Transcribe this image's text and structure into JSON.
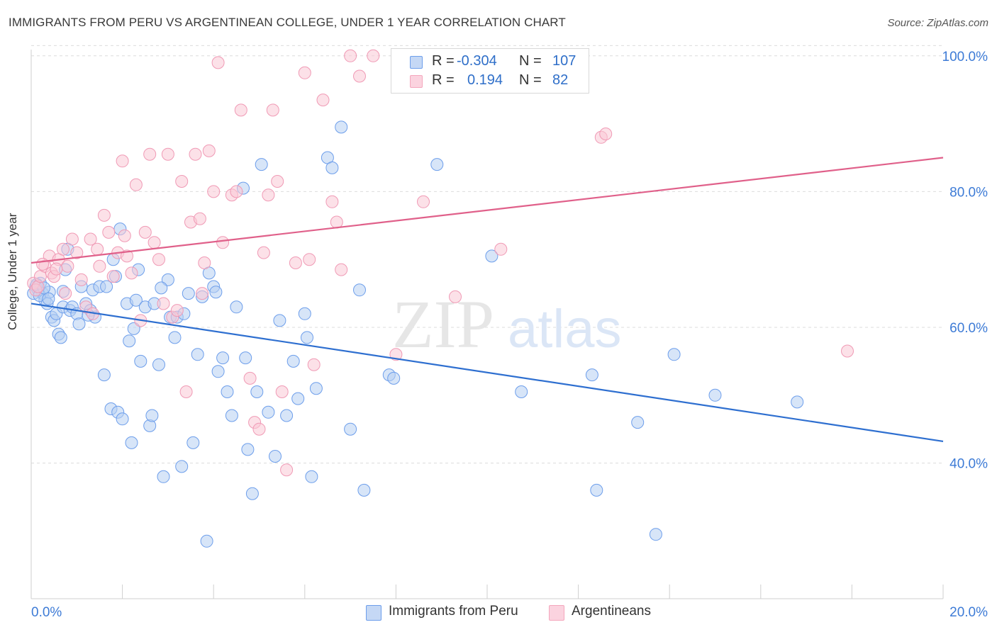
{
  "title": "IMMIGRANTS FROM PERU VS ARGENTINEAN COLLEGE, UNDER 1 YEAR CORRELATION CHART",
  "source": "Source: ZipAtlas.com",
  "watermark": {
    "zip": "ZIP",
    "atlas": "atlas"
  },
  "legend": {
    "r_label": "R =",
    "n_label": "N =",
    "rows": [
      {
        "name": "Immigrants from Peru",
        "r": "-0.304",
        "n": "107",
        "color": "#6d9eeb"
      },
      {
        "name": "Argentineans",
        "r": "0.194",
        "n": "82",
        "color": "#f4a7bd"
      }
    ]
  },
  "colors": {
    "blue_line": "#2e6fd0",
    "pink_line": "#e0608a",
    "blue_fill": "#b7cff2",
    "pink_fill": "#f9c8d6",
    "axis_text": "#3d7bd6",
    "grid": "#dcdcdc"
  },
  "chart_data": {
    "type": "scatter",
    "title": "IMMIGRANTS FROM PERU VS ARGENTINEAN COLLEGE, UNDER 1 YEAR CORRELATION CHART",
    "xlabel": "",
    "ylabel": "College, Under 1 year",
    "xlim": [
      0.0,
      20.0
    ],
    "ylim": [
      20.0,
      102.0
    ],
    "x_tick_labels": [
      "0.0%",
      "20.0%"
    ],
    "y_ticks": [
      40,
      60,
      80,
      100
    ],
    "y_tick_labels": [
      "40.0%",
      "60.0%",
      "80.0%",
      "100.0%"
    ],
    "grid": true,
    "legend_position": "bottom",
    "series": [
      {
        "name": "Immigrants from Peru",
        "r": -0.304,
        "n": 107,
        "trend": {
          "x": [
            0.0,
            20.0
          ],
          "y": [
            63.5,
            43.2
          ]
        },
        "points": [
          [
            0.1,
            66.0
          ],
          [
            0.15,
            65.5
          ],
          [
            0.2,
            66.5
          ],
          [
            0.25,
            65.0
          ],
          [
            0.3,
            64.0
          ],
          [
            0.35,
            63.5
          ],
          [
            0.4,
            65.2
          ],
          [
            0.45,
            61.5
          ],
          [
            0.5,
            61.0
          ],
          [
            0.55,
            62.0
          ],
          [
            0.6,
            59.0
          ],
          [
            0.65,
            58.5
          ],
          [
            0.7,
            63.0
          ],
          [
            0.75,
            68.5
          ],
          [
            0.8,
            71.5
          ],
          [
            0.85,
            62.5
          ],
          [
            0.9,
            63.0
          ],
          [
            1.0,
            62.0
          ],
          [
            1.05,
            60.5
          ],
          [
            1.1,
            66.0
          ],
          [
            1.2,
            63.5
          ],
          [
            1.3,
            62.5
          ],
          [
            1.35,
            65.5
          ],
          [
            1.4,
            61.5
          ],
          [
            1.5,
            66.0
          ],
          [
            1.6,
            53.0
          ],
          [
            1.65,
            66.0
          ],
          [
            1.75,
            48.0
          ],
          [
            1.8,
            70.0
          ],
          [
            1.85,
            67.5
          ],
          [
            1.9,
            47.5
          ],
          [
            1.95,
            74.5
          ],
          [
            2.0,
            46.5
          ],
          [
            2.1,
            63.5
          ],
          [
            2.15,
            58.0
          ],
          [
            2.2,
            43.0
          ],
          [
            2.3,
            64.0
          ],
          [
            2.35,
            68.5
          ],
          [
            2.4,
            55.0
          ],
          [
            2.5,
            63.0
          ],
          [
            2.6,
            45.5
          ],
          [
            2.65,
            47.0
          ],
          [
            2.7,
            63.5
          ],
          [
            2.8,
            54.5
          ],
          [
            2.9,
            38.0
          ],
          [
            3.0,
            67.0
          ],
          [
            3.05,
            61.5
          ],
          [
            3.15,
            58.5
          ],
          [
            3.2,
            61.5
          ],
          [
            3.3,
            39.5
          ],
          [
            3.35,
            62.0
          ],
          [
            3.45,
            65.0
          ],
          [
            3.55,
            43.0
          ],
          [
            3.65,
            56.0
          ],
          [
            3.75,
            64.5
          ],
          [
            3.85,
            28.5
          ],
          [
            3.9,
            68.0
          ],
          [
            4.0,
            66.0
          ],
          [
            4.1,
            53.5
          ],
          [
            4.2,
            55.5
          ],
          [
            4.3,
            50.5
          ],
          [
            4.4,
            47.0
          ],
          [
            4.5,
            63.0
          ],
          [
            4.65,
            80.5
          ],
          [
            4.7,
            55.5
          ],
          [
            4.75,
            42.0
          ],
          [
            4.85,
            35.5
          ],
          [
            4.95,
            50.5
          ],
          [
            5.05,
            84.0
          ],
          [
            5.2,
            47.5
          ],
          [
            5.35,
            41.0
          ],
          [
            5.45,
            61.0
          ],
          [
            5.6,
            47.0
          ],
          [
            5.75,
            55.0
          ],
          [
            5.85,
            49.5
          ],
          [
            6.0,
            62.0
          ],
          [
            6.05,
            58.5
          ],
          [
            6.15,
            38.0
          ],
          [
            6.25,
            51.0
          ],
          [
            6.5,
            85.0
          ],
          [
            6.6,
            83.5
          ],
          [
            6.8,
            89.5
          ],
          [
            7.0,
            45.0
          ],
          [
            7.2,
            65.5
          ],
          [
            7.3,
            36.0
          ],
          [
            7.85,
            53.0
          ],
          [
            7.95,
            52.5
          ],
          [
            8.9,
            84.0
          ],
          [
            10.1,
            70.5
          ],
          [
            10.75,
            50.5
          ],
          [
            12.3,
            53.0
          ],
          [
            12.4,
            36.0
          ],
          [
            13.3,
            46.0
          ],
          [
            13.7,
            29.5
          ],
          [
            14.1,
            56.0
          ],
          [
            15.0,
            50.0
          ],
          [
            16.8,
            49.0
          ],
          [
            0.05,
            65.0
          ],
          [
            0.12,
            66.3
          ],
          [
            0.18,
            64.7
          ],
          [
            0.28,
            65.8
          ],
          [
            0.38,
            64.2
          ],
          [
            0.7,
            65.3
          ],
          [
            1.25,
            61.8
          ],
          [
            2.25,
            59.8
          ],
          [
            2.85,
            65.8
          ],
          [
            4.05,
            65.2
          ]
        ]
      },
      {
        "name": "Argentineans",
        "r": 0.194,
        "n": 82,
        "trend": {
          "x": [
            0.0,
            20.0
          ],
          "y": [
            69.5,
            85.0
          ]
        },
        "points": [
          [
            0.05,
            66.5
          ],
          [
            0.1,
            65.5
          ],
          [
            0.15,
            66.0
          ],
          [
            0.2,
            67.5
          ],
          [
            0.3,
            69.0
          ],
          [
            0.4,
            70.5
          ],
          [
            0.45,
            68.0
          ],
          [
            0.5,
            67.5
          ],
          [
            0.6,
            70.0
          ],
          [
            0.7,
            71.5
          ],
          [
            0.75,
            65.0
          ],
          [
            0.8,
            69.0
          ],
          [
            0.9,
            73.0
          ],
          [
            1.0,
            71.0
          ],
          [
            1.1,
            67.0
          ],
          [
            1.2,
            63.0
          ],
          [
            1.3,
            73.0
          ],
          [
            1.45,
            71.5
          ],
          [
            1.5,
            69.0
          ],
          [
            1.6,
            76.5
          ],
          [
            1.7,
            74.0
          ],
          [
            1.8,
            67.5
          ],
          [
            1.9,
            71.0
          ],
          [
            2.0,
            84.5
          ],
          [
            2.1,
            70.5
          ],
          [
            2.2,
            68.0
          ],
          [
            2.3,
            81.0
          ],
          [
            2.4,
            61.0
          ],
          [
            2.5,
            74.0
          ],
          [
            2.6,
            85.5
          ],
          [
            2.7,
            72.5
          ],
          [
            2.8,
            70.0
          ],
          [
            2.9,
            63.5
          ],
          [
            3.0,
            85.5
          ],
          [
            3.1,
            61.5
          ],
          [
            3.2,
            62.5
          ],
          [
            3.3,
            81.5
          ],
          [
            3.4,
            50.5
          ],
          [
            3.5,
            75.5
          ],
          [
            3.6,
            85.5
          ],
          [
            3.7,
            76.0
          ],
          [
            3.8,
            69.5
          ],
          [
            3.9,
            86.0
          ],
          [
            4.0,
            80.0
          ],
          [
            4.1,
            99.0
          ],
          [
            4.2,
            72.5
          ],
          [
            4.4,
            79.5
          ],
          [
            4.5,
            80.0
          ],
          [
            4.6,
            92.0
          ],
          [
            4.8,
            52.5
          ],
          [
            4.9,
            46.0
          ],
          [
            5.0,
            45.0
          ],
          [
            5.1,
            71.0
          ],
          [
            5.2,
            79.5
          ],
          [
            5.3,
            92.0
          ],
          [
            5.4,
            81.5
          ],
          [
            5.5,
            50.5
          ],
          [
            5.6,
            39.0
          ],
          [
            5.8,
            69.5
          ],
          [
            6.0,
            97.5
          ],
          [
            6.2,
            54.5
          ],
          [
            6.4,
            93.5
          ],
          [
            6.6,
            78.5
          ],
          [
            6.8,
            68.5
          ],
          [
            7.0,
            100.0
          ],
          [
            7.2,
            97.0
          ],
          [
            7.5,
            100.0
          ],
          [
            8.0,
            56.0
          ],
          [
            8.6,
            78.5
          ],
          [
            9.3,
            64.5
          ],
          [
            9.6,
            100.0
          ],
          [
            10.3,
            71.5
          ],
          [
            12.5,
            88.0
          ],
          [
            12.6,
            88.5
          ],
          [
            17.9,
            56.5
          ],
          [
            0.25,
            69.3
          ],
          [
            0.55,
            68.6
          ],
          [
            1.35,
            62.0
          ],
          [
            2.05,
            73.5
          ],
          [
            3.75,
            65.0
          ],
          [
            6.1,
            70.0
          ],
          [
            6.7,
            75.5
          ]
        ]
      }
    ]
  }
}
